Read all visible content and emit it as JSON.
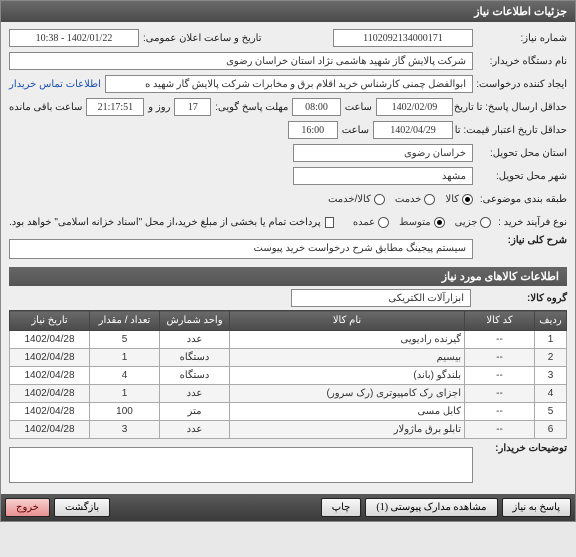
{
  "window": {
    "title": "جزئیات اطلاعات نیاز"
  },
  "labels": {
    "need_no": "شماره نیاز:",
    "announce_dt": "تاریخ و ساعت اعلان عمومی:",
    "buyer_org": "نام دستگاه خریدار:",
    "requester": "ایجاد کننده درخواست:",
    "contact": "اطلاعات تماس خریدار",
    "deadline": "حداقل ارسال پاسخ: تا تاریخ:",
    "hour": "ساعت",
    "deadline_hour2": "مهلت پاسخ گویی:",
    "day": "روز و",
    "remaining": "ساعت باقی مانده",
    "valid_until": "حداقل تاریخ اعتبار قیمت: تا تاریخ:",
    "province": "استان محل تحویل:",
    "city": "شهر محل تحویل:",
    "classify": "طبقه بندی موضوعی:",
    "process": "نوع فرآیند خرید :",
    "pay_note": "پرداخت تمام یا بخشی از مبلغ خرید،از محل \"اسناد خزانه اسلامی\" خواهد بود.",
    "overview": "شرح کلی نیاز:",
    "items_header": "اطلاعات کالاهای مورد نیاز",
    "group": "گروه کالا:",
    "buyer_notes": "توضیحات خریدار:"
  },
  "fields": {
    "need_no": "1102092134000171",
    "announce_dt": "1402/01/22 - 10:38",
    "buyer_org": "شرکت پالایش گاز شهید هاشمی نژاد   استان خراسان رضوی",
    "requester": "ابوالفضل چمنی کارشناس خرید اقلام برق و مخابرات شرکت پالایش گار شهید ه",
    "deadline_date": "1402/02/09",
    "deadline_time": "08:00",
    "days": "17",
    "remain_clock": "21:17:51",
    "valid_date": "1402/04/29",
    "valid_time": "16:00",
    "province": "خراسان رضوی",
    "city": "مشهد",
    "overview": "سیستم پیجینگ مطابق شرح درخواست خرید پیوست",
    "group": "ابزارآلات الکتریکی"
  },
  "classify": {
    "opts": [
      "کالا",
      "خدمت",
      "کالا/خدمت"
    ],
    "selected": 0
  },
  "process": {
    "opts": [
      "جزیی",
      "متوسط",
      "عمده"
    ],
    "selected": 1
  },
  "table": {
    "headers": [
      "ردیف",
      "کد کالا",
      "نام کالا",
      "واحد شمارش",
      "تعداد / مقدار",
      "تاریخ نیاز"
    ],
    "rows": [
      [
        "1",
        "--",
        "گیرنده رادیویی",
        "عدد",
        "5",
        "1402/04/28"
      ],
      [
        "2",
        "--",
        "بیسیم",
        "دستگاه",
        "1",
        "1402/04/28"
      ],
      [
        "3",
        "--",
        "بلندگو (باند)",
        "دستگاه",
        "4",
        "1402/04/28"
      ],
      [
        "4",
        "--",
        "اجزای رک کامپیوتری (رک سرور)",
        "عدد",
        "1",
        "1402/04/28"
      ],
      [
        "5",
        "--",
        "کابل مسی",
        "متر",
        "100",
        "1402/04/28"
      ],
      [
        "6",
        "--",
        "تابلو برق ماژولار",
        "عدد",
        "3",
        "1402/04/28"
      ]
    ]
  },
  "footer": {
    "buttons": [
      "پاسخ به نیاز",
      "مشاهده مدارک پیوستی (1)",
      "چاپ",
      "بازگشت",
      "خروج"
    ]
  }
}
